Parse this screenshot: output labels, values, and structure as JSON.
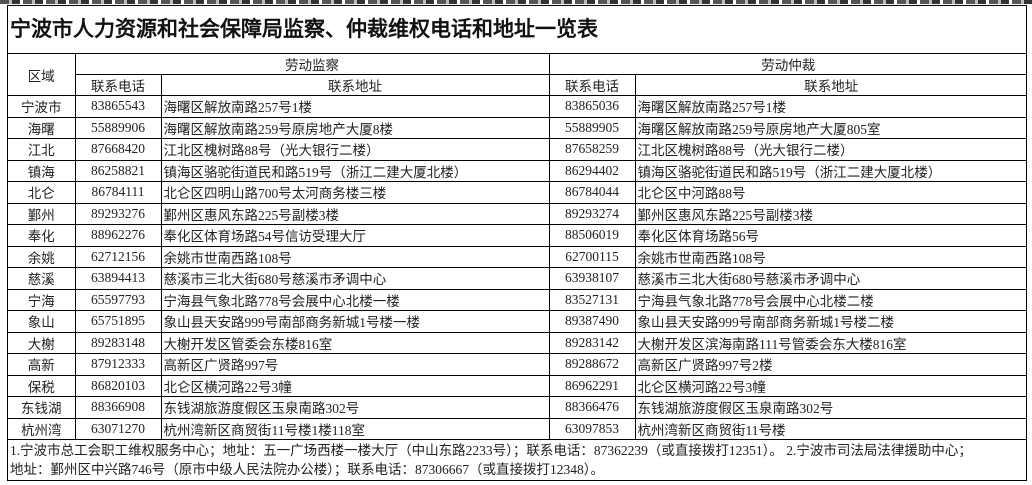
{
  "title": "宁波市人力资源和社会保障局监察、仲裁维权电话和地址一览表",
  "headers": {
    "region": "区域",
    "inspection": "劳动监察",
    "arbitration": "劳动仲裁",
    "phone": "联系电话",
    "address": "联系地址"
  },
  "rows": [
    {
      "region": "宁波市",
      "insp_phone": "83865543",
      "insp_addr": "海曙区解放南路257号1楼",
      "arb_phone": "83865036",
      "arb_addr": "海曙区解放南路257号1楼"
    },
    {
      "region": "海曙",
      "insp_phone": "55889906",
      "insp_addr": "海曙区解放南路259号原房地产大厦8楼",
      "arb_phone": "55889905",
      "arb_addr": "海曙区解放南路259号原房地产大厦805室"
    },
    {
      "region": "江北",
      "insp_phone": "87668420",
      "insp_addr": "江北区槐树路88号（光大银行二楼）",
      "arb_phone": "87658259",
      "arb_addr": "江北区槐树路88号（光大银行二楼）"
    },
    {
      "region": "镇海",
      "insp_phone": "86258821",
      "insp_addr": "镇海区骆驼街道民和路519号（浙江二建大厦北楼）",
      "arb_phone": "86294402",
      "arb_addr": "镇海区骆驼街道民和路519号（浙江二建大厦北楼）"
    },
    {
      "region": "北仑",
      "insp_phone": "86784111",
      "insp_addr": "北仑区四明山路700号太河商务楼三楼",
      "arb_phone": "86784044",
      "arb_addr": "北仑区中河路88号"
    },
    {
      "region": "鄞州",
      "insp_phone": "89293276",
      "insp_addr": "鄞州区惠风东路225号副楼3楼",
      "arb_phone": "89293274",
      "arb_addr": "鄞州区惠风东路225号副楼3楼"
    },
    {
      "region": "奉化",
      "insp_phone": "88962276",
      "insp_addr": "奉化区体育场路54号信访受理大厅",
      "arb_phone": "88506019",
      "arb_addr": "奉化区体育场路56号"
    },
    {
      "region": "余姚",
      "insp_phone": "62712156",
      "insp_addr": "余姚市世南西路108号",
      "arb_phone": "62700115",
      "arb_addr": "余姚市世南西路108号"
    },
    {
      "region": "慈溪",
      "insp_phone": "63894413",
      "insp_addr": "慈溪市三北大街680号慈溪市矛调中心",
      "arb_phone": "63938107",
      "arb_addr": "慈溪市三北大街680号慈溪市矛调中心"
    },
    {
      "region": "宁海",
      "insp_phone": "65597793",
      "insp_addr": "宁海县气象北路778号会展中心北楼一楼",
      "arb_phone": "83527131",
      "arb_addr": "宁海县气象北路778号会展中心北楼二楼"
    },
    {
      "region": "象山",
      "insp_phone": "65751895",
      "insp_addr": "象山县天安路999号南部商务新城1号楼一楼",
      "arb_phone": "89387490",
      "arb_addr": "象山县天安路999号南部商务新城1号楼二楼"
    },
    {
      "region": "大榭",
      "insp_phone": "89283148",
      "insp_addr": "大榭开发区管委会东楼816室",
      "arb_phone": "89283142",
      "arb_addr": "大榭开发区滨海南路111号管委会东大楼816室"
    },
    {
      "region": "高新",
      "insp_phone": "87912333",
      "insp_addr": "高新区广贤路997号",
      "arb_phone": "89288672",
      "arb_addr": "高新区广贤路997号2楼"
    },
    {
      "region": "保税",
      "insp_phone": "86820103",
      "insp_addr": "北仑区横河路22号3幢",
      "arb_phone": "86962291",
      "arb_addr": "北仑区横河路22号3幢"
    },
    {
      "region": "东钱湖",
      "insp_phone": "88366908",
      "insp_addr": "东钱湖旅游度假区玉泉南路302号",
      "arb_phone": "88366476",
      "arb_addr": "东钱湖旅游度假区玉泉南路302号"
    },
    {
      "region": "杭州湾",
      "insp_phone": "63071270",
      "insp_addr": "杭州湾新区商贸街11号楼1楼118室",
      "arb_phone": "63097853",
      "arb_addr": "杭州湾新区商贸街11号楼"
    }
  ],
  "footer": {
    "line1": "1.宁波市总工会职工维权服务中心；地址：五一广场西楼一楼大厅（中山东路2233号）；联系电话：87362239（或直接拨打12351）。 2.宁波市司法局法律援助中心；",
    "line2": "地址：鄞州区中兴路746号（原市中级人民法院办公楼）；联系电话：87306667（或直接拨打12348）。"
  }
}
